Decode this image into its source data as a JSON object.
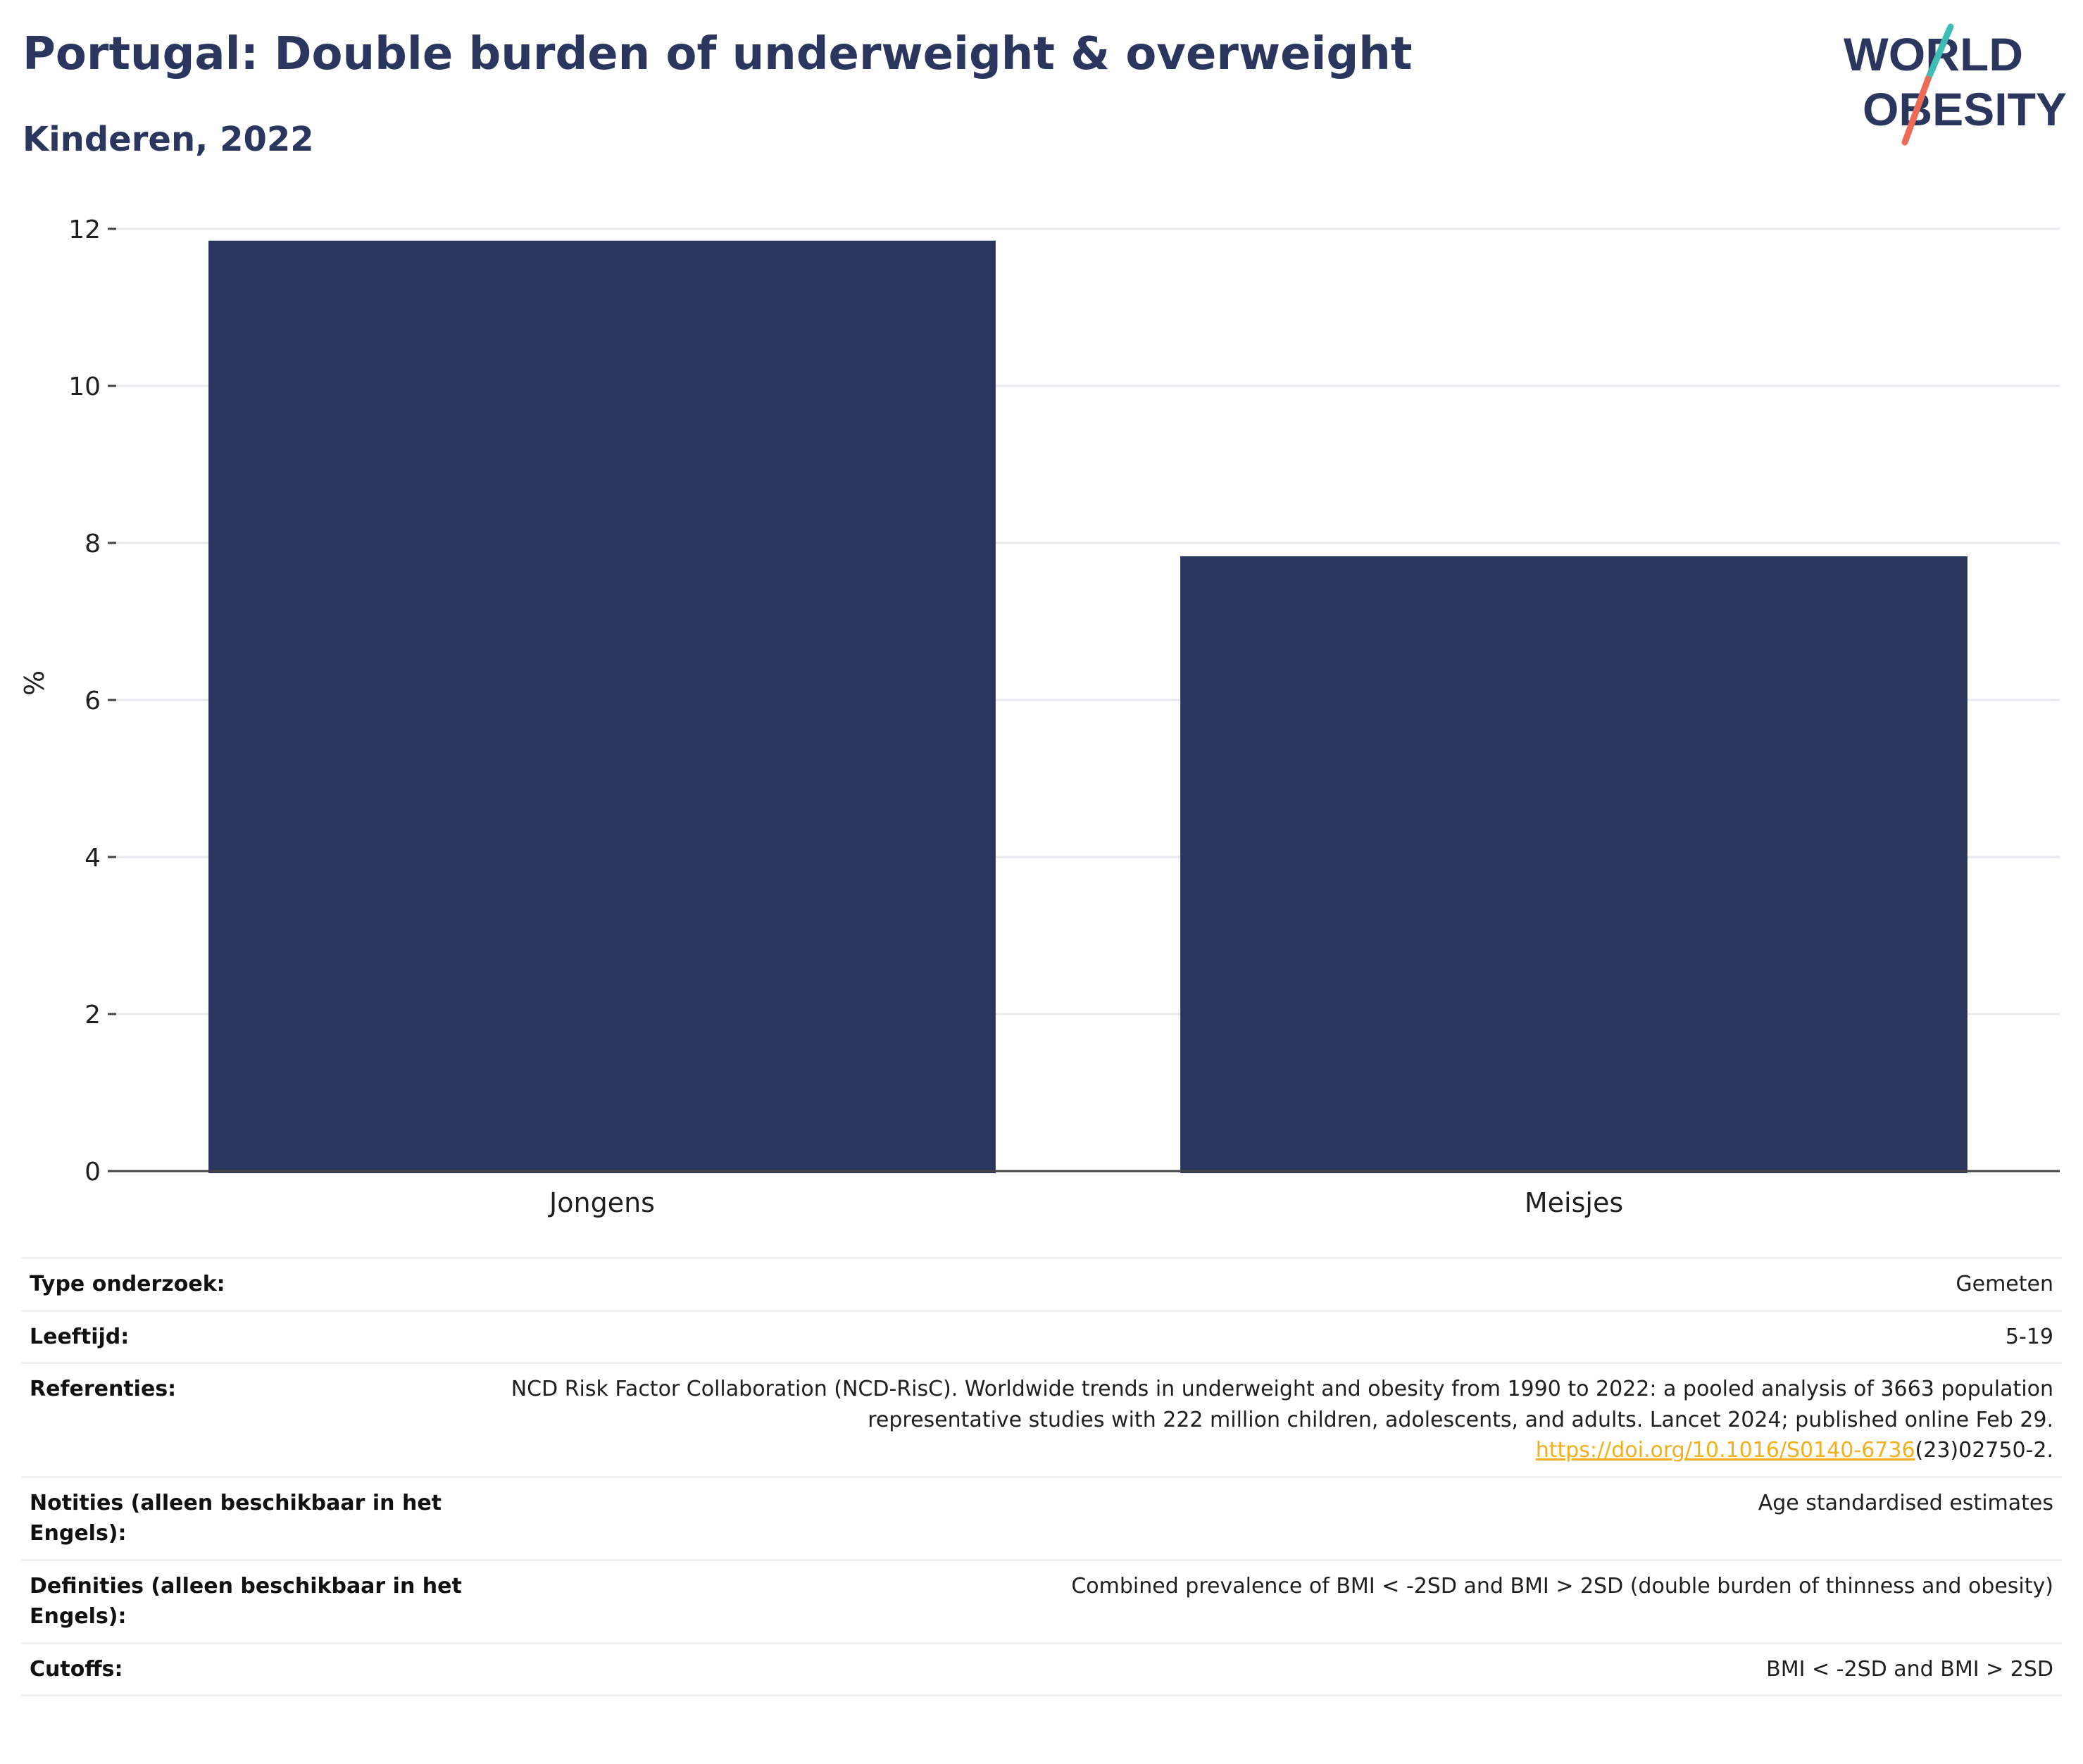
{
  "header": {
    "title": "Portugal: Double burden of underweight & overweight",
    "subtitle": "Kinderen, 2022",
    "logo": {
      "line1": "WORLD",
      "line2": "OBESITY",
      "brand_color": "#2b365f",
      "accent_teal": "#3dbdb4",
      "accent_coral": "#ec6a56"
    }
  },
  "chart_data": {
    "type": "bar",
    "title": "Portugal: Double burden of underweight & overweight",
    "subtitle": "Kinderen, 2022",
    "categories": [
      "Jongens",
      "Meisjes"
    ],
    "values": [
      11.85,
      7.83
    ],
    "xlabel": "",
    "ylabel": "%",
    "ylim": [
      0,
      12
    ],
    "yticks": [
      0,
      2,
      4,
      6,
      8,
      10,
      12
    ],
    "grid": true,
    "legend": "none",
    "bar_color": "#2b365f"
  },
  "info": {
    "rows": [
      {
        "label": "Type onderzoek:",
        "value": "Gemeten"
      },
      {
        "label": "Leeftijd:",
        "value": "5-19"
      },
      {
        "label": "Referenties:",
        "value": "NCD Risk Factor Collaboration (NCD-RisC). Worldwide trends in underweight and obesity from 1990 to 2022: a pooled analysis of 3663 population representative studies with 222 million children, adolescents, and adults. Lancet 2024; published online Feb 29.",
        "link": "https://doi.org/10.1016/S0140-6736",
        "link_suffix": "(23)02750-2."
      },
      {
        "label": "Notities (alleen beschikbaar in het Engels):",
        "value": "Age standardised estimates"
      },
      {
        "label": "Definities (alleen beschikbaar in het Engels):",
        "value": "Combined prevalence of BMI < -2SD and BMI > 2SD (double burden of thinness and obesity)"
      },
      {
        "label": "Cutoffs:",
        "value": "BMI < -2SD and BMI > 2SD"
      }
    ]
  }
}
